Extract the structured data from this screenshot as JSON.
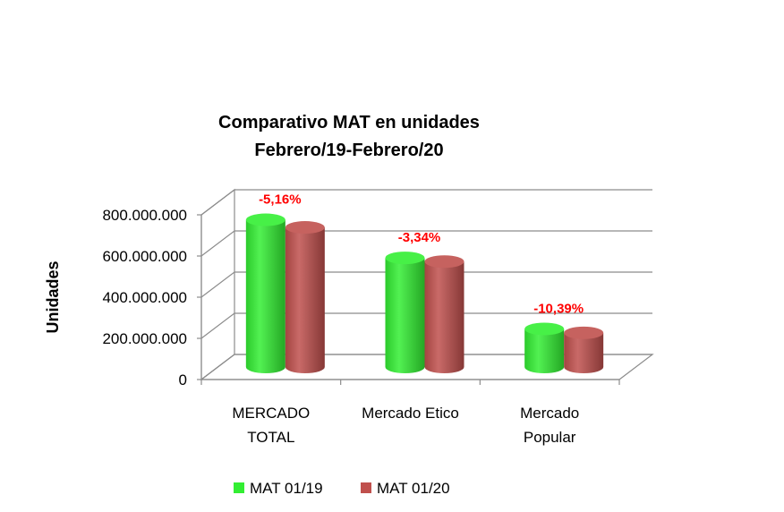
{
  "chart_data": {
    "type": "bar",
    "title": "Comparativo MAT en unidades",
    "subtitle": "Febrero/19-Febrero/20",
    "xlabel": "",
    "ylabel": "Unidades",
    "ylim": [
      0,
      800000000
    ],
    "yticks": [
      0,
      200000000,
      400000000,
      600000000,
      800000000
    ],
    "ytick_labels": [
      "0",
      "200.000.000",
      "400.000.000",
      "600.000.000",
      "800.000.000"
    ],
    "categories": [
      [
        "MERCADO",
        "TOTAL"
      ],
      [
        "Mercado Etico"
      ],
      [
        "Mercado",
        "Popular"
      ]
    ],
    "series": [
      {
        "name": "MAT 01/19",
        "color": "#33ee33",
        "values": [
          715000000,
          530000000,
          185000000
        ]
      },
      {
        "name": "MAT  01/20",
        "color": "#c0504d",
        "values": [
          678000000,
          512000000,
          166000000
        ]
      }
    ],
    "annotations": [
      "-5,16%",
      "-3,34%",
      "-10,39%"
    ],
    "annotation_color": "#ff0000",
    "legend_position": "bottom",
    "grid": true
  }
}
